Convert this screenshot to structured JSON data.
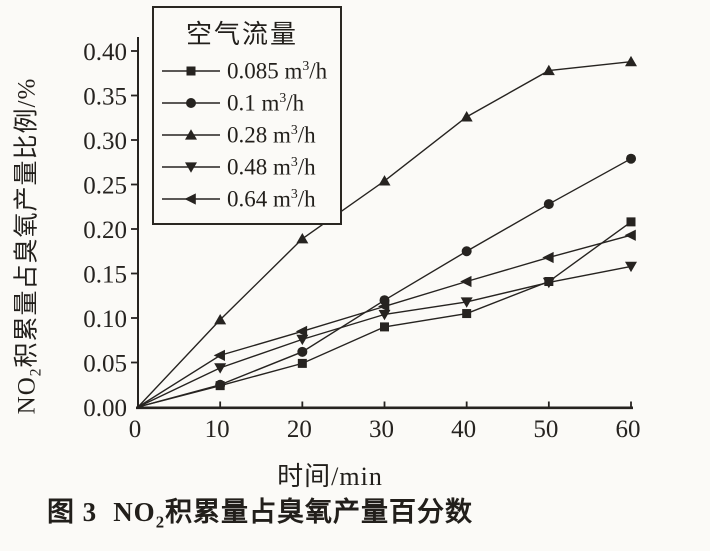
{
  "page": {
    "background": "#fbfaf7",
    "ink": "#262320"
  },
  "chart_data": {
    "type": "line",
    "title": "",
    "xlabel": "时间/min",
    "ylabel": "NO₂积累量占臭氧产量比例/%",
    "ylabel_parts": {
      "prefix": "NO",
      "sub": "2",
      "rest": "积累量占臭氧产量比例/%"
    },
    "xlim": [
      0,
      60
    ],
    "ylim": [
      0.0,
      0.4
    ],
    "x_ticks": [
      0,
      10,
      20,
      30,
      40,
      50,
      60
    ],
    "y_ticks": [
      "0.00",
      "0.05",
      "0.10",
      "0.15",
      "0.20",
      "0.25",
      "0.30",
      "0.35",
      "0.40"
    ],
    "y_tick_values": [
      0.0,
      0.05,
      0.1,
      0.15,
      0.2,
      0.25,
      0.3,
      0.35,
      0.4
    ],
    "grid": false,
    "legend": {
      "title": "空气流量",
      "position": "top-left-inside",
      "unit": {
        "pre": " m",
        "sup": "3",
        "suf": "/h"
      }
    },
    "x": [
      0,
      10,
      20,
      30,
      40,
      50,
      60
    ],
    "series": [
      {
        "name": "0.085 m³/h",
        "flow": "0.085",
        "marker": "square",
        "values": [
          0,
          0.024,
          0.049,
          0.09,
          0.105,
          0.141,
          0.208
        ]
      },
      {
        "name": "0.1 m³/h",
        "flow": "0.1",
        "marker": "circle",
        "values": [
          0,
          0.025,
          0.062,
          0.12,
          0.175,
          0.228,
          0.279
        ]
      },
      {
        "name": "0.28 m³/h",
        "flow": "0.28",
        "marker": "triangle-up",
        "values": [
          0,
          0.098,
          0.189,
          0.254,
          0.326,
          0.378,
          0.388
        ]
      },
      {
        "name": "0.48 m³/h",
        "flow": "0.48",
        "marker": "triangle-down",
        "values": [
          0,
          0.044,
          0.076,
          0.104,
          0.118,
          0.14,
          0.158
        ]
      },
      {
        "name": "0.64 m³/h",
        "flow": "0.64",
        "marker": "triangle-left",
        "values": [
          0,
          0.058,
          0.085,
          0.113,
          0.141,
          0.168,
          0.193
        ]
      }
    ]
  },
  "caption": {
    "fig_label": "图 3",
    "chem_prefix": "NO",
    "chem_sub": "2",
    "text": "积累量占臭氧产量百分数"
  }
}
